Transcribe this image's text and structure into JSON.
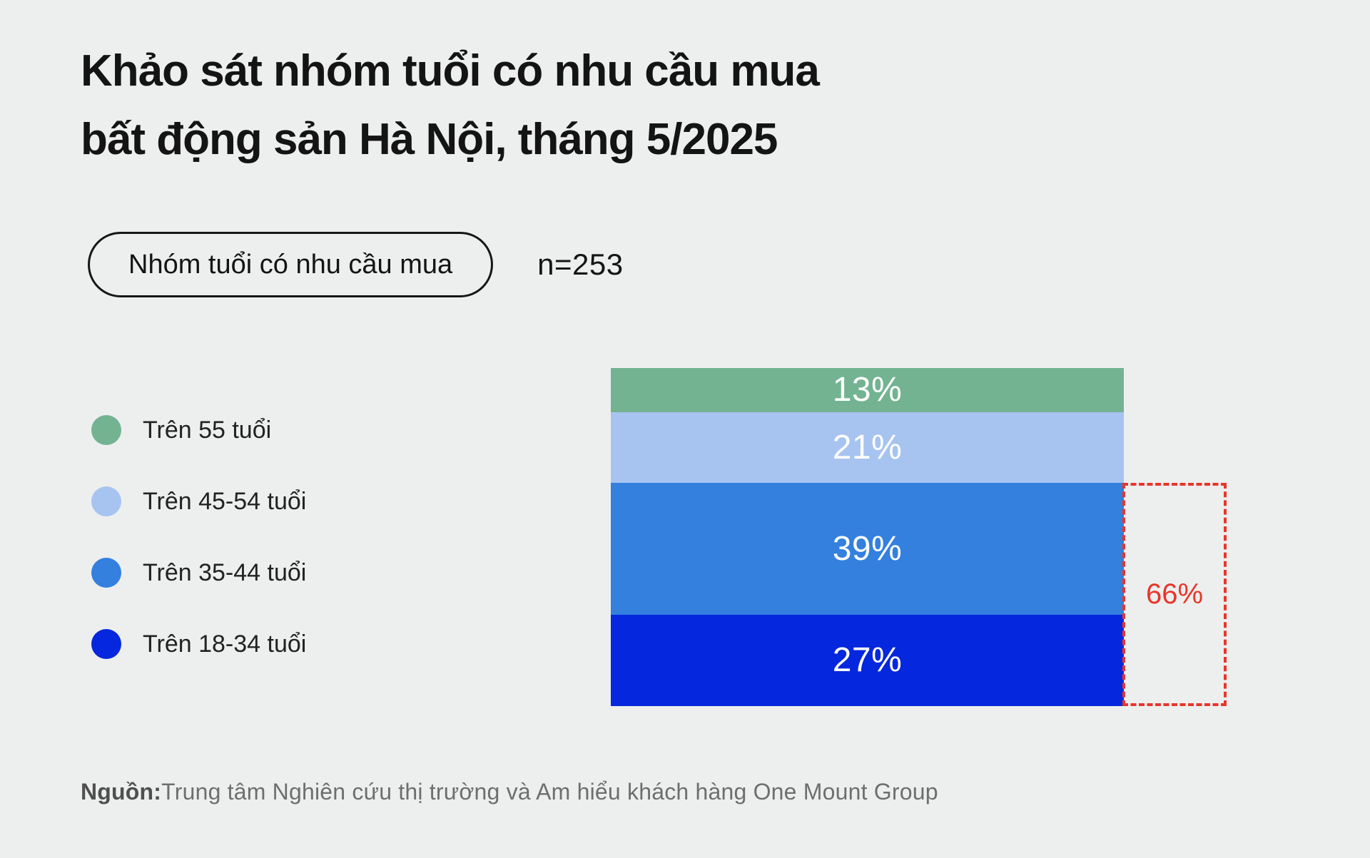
{
  "title": {
    "line1": "Khảo sát nhóm tuổi có nhu cầu mua",
    "line2": "bất động sản Hà Nội, tháng 5/2025"
  },
  "controls": {
    "pill_label": "Nhóm tuổi có nhu cầu mua",
    "sample_size": "n=253"
  },
  "chart_data": {
    "type": "bar",
    "stacked": true,
    "orientation": "vertical",
    "title": "Khảo sát nhóm tuổi có nhu cầu mua bất động sản Hà Nội, tháng 5/2025",
    "sample_size": 253,
    "unit": "%",
    "categories": [
      "Trên 55 tuổi",
      "Trên 45-54 tuổi",
      "Trên 35-44 tuổi",
      "Trên 18-34 tuổi"
    ],
    "values": [
      13,
      21,
      39,
      27
    ],
    "legend_position": "left",
    "segments": [
      {
        "label": "Trên 55 tuổi",
        "value": 13,
        "value_label": "13%",
        "color": "#73b391"
      },
      {
        "label": "Trên 45-54 tuổi",
        "value": 21,
        "value_label": "21%",
        "color": "#a7c4f1"
      },
      {
        "label": "Trên 35-44 tuổi",
        "value": 39,
        "value_label": "39%",
        "color": "#3380de"
      },
      {
        "label": "Trên 18-34 tuổi",
        "value": 27,
        "value_label": "27%",
        "color": "#0527dd"
      }
    ],
    "annotation": {
      "label": "66%",
      "value": 66,
      "covers": [
        "Trên 35-44 tuổi",
        "Trên 18-34 tuổi"
      ],
      "start_index": 2,
      "color": "#e8352b"
    }
  },
  "footer": {
    "source_label": "Nguồn:",
    "source_text": "Trung tâm Nghiên cứu thị trường và Am hiểu khách hàng One Mount Group"
  },
  "colors": {
    "background": "#edefee",
    "text": "#141414",
    "muted": "#6e6e6e",
    "highlight": "#e8352b"
  }
}
